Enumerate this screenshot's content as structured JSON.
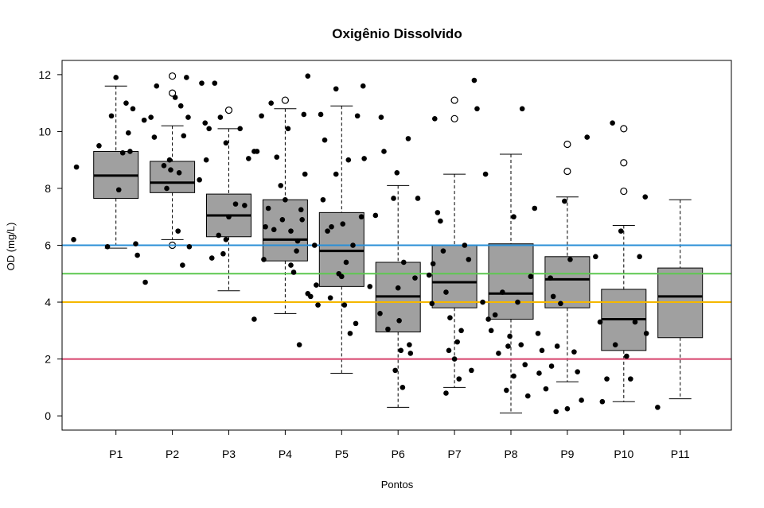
{
  "chart_data": {
    "type": "boxplot",
    "title": "Oxigênio Dissolvido",
    "xlabel": "Pontos",
    "ylabel": "OD (mg/L)",
    "ylim": [
      -0.5,
      12.5
    ],
    "yticks": [
      0,
      2,
      4,
      6,
      8,
      10,
      12
    ],
    "categories": [
      "P1",
      "P2",
      "P3",
      "P4",
      "P5",
      "P6",
      "P7",
      "P8",
      "P9",
      "P10",
      "P11"
    ],
    "boxes": [
      {
        "name": "P1",
        "whisker_low": 5.9,
        "q1": 7.65,
        "median": 8.45,
        "q3": 9.3,
        "whisker_high": 11.6,
        "outliers": []
      },
      {
        "name": "P2",
        "whisker_low": 6.2,
        "q1": 7.85,
        "median": 8.2,
        "q3": 8.95,
        "whisker_high": 10.2,
        "outliers": [
          11.95,
          11.35,
          6.0
        ]
      },
      {
        "name": "P3",
        "whisker_low": 4.4,
        "q1": 6.3,
        "median": 7.05,
        "q3": 7.8,
        "whisker_high": 10.1,
        "outliers": [
          10.75
        ]
      },
      {
        "name": "P4",
        "whisker_low": 3.6,
        "q1": 5.45,
        "median": 6.2,
        "q3": 7.6,
        "whisker_high": 10.8,
        "outliers": [
          11.1
        ]
      },
      {
        "name": "P5",
        "whisker_low": 1.5,
        "q1": 4.55,
        "median": 5.8,
        "q3": 7.15,
        "whisker_high": 10.9,
        "outliers": []
      },
      {
        "name": "P6",
        "whisker_low": 0.3,
        "q1": 2.95,
        "median": 4.2,
        "q3": 5.4,
        "whisker_high": 8.1,
        "outliers": []
      },
      {
        "name": "P7",
        "whisker_low": 1.0,
        "q1": 3.8,
        "median": 4.7,
        "q3": 6.0,
        "whisker_high": 8.5,
        "outliers": [
          11.1,
          10.45
        ]
      },
      {
        "name": "P8",
        "whisker_low": 0.1,
        "q1": 3.4,
        "median": 4.3,
        "q3": 6.05,
        "whisker_high": 9.2,
        "outliers": []
      },
      {
        "name": "P9",
        "whisker_low": 1.2,
        "q1": 3.8,
        "median": 4.8,
        "q3": 5.6,
        "whisker_high": 7.7,
        "outliers": [
          9.55,
          8.6
        ]
      },
      {
        "name": "P10",
        "whisker_low": 0.5,
        "q1": 2.3,
        "median": 3.4,
        "q3": 4.45,
        "whisker_high": 6.7,
        "outliers": [
          10.1,
          8.9,
          7.9
        ]
      },
      {
        "name": "P11",
        "whisker_low": 0.6,
        "q1": 2.75,
        "median": 4.2,
        "q3": 5.2,
        "whisker_high": 7.6,
        "outliers": []
      }
    ],
    "reference_lines": [
      {
        "y": 6,
        "color": "#2a8fd7"
      },
      {
        "y": 5,
        "color": "#5dc850"
      },
      {
        "y": 4,
        "color": "#f5b800"
      },
      {
        "y": 2,
        "color": "#d6416b"
      }
    ],
    "points": [
      [
        0.3,
        8.75
      ],
      [
        0.25,
        6.2
      ],
      [
        0.7,
        9.5
      ],
      [
        1,
        11.9
      ],
      [
        1.22,
        9.95
      ],
      [
        0.92,
        10.55
      ],
      [
        1.12,
        9.25
      ],
      [
        1.25,
        9.3
      ],
      [
        1.3,
        10.8
      ],
      [
        1.05,
        7.95
      ],
      [
        0.85,
        5.95
      ],
      [
        1.18,
        11.0
      ],
      [
        1.35,
        6.05
      ],
      [
        1.38,
        5.65
      ],
      [
        1.52,
        4.7
      ],
      [
        1.5,
        10.4
      ],
      [
        1.62,
        10.5
      ],
      [
        1.72,
        11.6
      ],
      [
        1.85,
        8.8
      ],
      [
        1.97,
        8.65
      ],
      [
        1.9,
        8.0
      ],
      [
        2.05,
        11.2
      ],
      [
        2.12,
        8.55
      ],
      [
        2.2,
        9.85
      ],
      [
        2.28,
        10.5
      ],
      [
        2.1,
        6.5
      ],
      [
        2.3,
        5.95
      ],
      [
        2.18,
        5.3
      ],
      [
        1.68,
        9.8
      ],
      [
        1.95,
        9.0
      ],
      [
        2.15,
        10.9
      ],
      [
        2.25,
        11.9
      ],
      [
        2.48,
        8.3
      ],
      [
        2.52,
        11.7
      ],
      [
        2.58,
        10.3
      ],
      [
        2.65,
        10.1
      ],
      [
        2.75,
        11.7
      ],
      [
        2.85,
        10.5
      ],
      [
        2.95,
        9.6
      ],
      [
        3.0,
        7.0
      ],
      [
        2.82,
        6.35
      ],
      [
        2.9,
        5.7
      ],
      [
        3.12,
        7.45
      ],
      [
        3.2,
        10.1
      ],
      [
        3.28,
        7.4
      ],
      [
        3.35,
        9.05
      ],
      [
        3.45,
        9.3
      ],
      [
        2.7,
        5.55
      ],
      [
        2.95,
        6.2
      ],
      [
        2.6,
        9.0
      ],
      [
        3.5,
        9.3
      ],
      [
        3.58,
        10.55
      ],
      [
        3.62,
        5.5
      ],
      [
        3.65,
        6.65
      ],
      [
        3.7,
        7.3
      ],
      [
        3.8,
        6.55
      ],
      [
        3.92,
        8.1
      ],
      [
        3.95,
        6.9
      ],
      [
        4.0,
        7.6
      ],
      [
        4.05,
        10.1
      ],
      [
        4.1,
        6.5
      ],
      [
        4.15,
        5.05
      ],
      [
        4.2,
        5.8
      ],
      [
        4.28,
        7.25
      ],
      [
        4.3,
        6.9
      ],
      [
        4.33,
        10.6
      ],
      [
        4.4,
        11.95
      ],
      [
        4.35,
        8.5
      ],
      [
        3.45,
        3.4
      ],
      [
        4.1,
        5.3
      ],
      [
        4.22,
        6.15
      ],
      [
        3.85,
        9.1
      ],
      [
        4.25,
        2.5
      ],
      [
        4.4,
        4.3
      ],
      [
        3.75,
        11.0
      ],
      [
        4.45,
        4.2
      ],
      [
        4.52,
        6.0
      ],
      [
        4.58,
        3.9
      ],
      [
        4.63,
        10.6
      ],
      [
        4.7,
        9.7
      ],
      [
        4.75,
        6.5
      ],
      [
        4.82,
        6.65
      ],
      [
        4.9,
        11.5
      ],
      [
        4.95,
        5.0
      ],
      [
        5.02,
        6.75
      ],
      [
        5.08,
        5.4
      ],
      [
        5.12,
        9.0
      ],
      [
        5.2,
        6.0
      ],
      [
        5.28,
        10.55
      ],
      [
        5.35,
        7.0
      ],
      [
        5.25,
        3.25
      ],
      [
        5.15,
        2.9
      ],
      [
        5.05,
        3.9
      ],
      [
        4.55,
        4.6
      ],
      [
        4.67,
        7.6
      ],
      [
        4.9,
        8.5
      ],
      [
        5.38,
        11.6
      ],
      [
        5.4,
        9.05
      ],
      [
        4.8,
        4.15
      ],
      [
        5.0,
        4.9
      ],
      [
        5.5,
        4.55
      ],
      [
        5.6,
        7.05
      ],
      [
        5.68,
        3.6
      ],
      [
        5.75,
        9.3
      ],
      [
        5.82,
        3.05
      ],
      [
        5.92,
        7.65
      ],
      [
        5.98,
        8.55
      ],
      [
        6.02,
        3.35
      ],
      [
        6.1,
        5.4
      ],
      [
        6.18,
        9.75
      ],
      [
        6.22,
        2.2
      ],
      [
        6.3,
        4.85
      ],
      [
        6.35,
        7.65
      ],
      [
        6.08,
        1.0
      ],
      [
        6.2,
        2.5
      ],
      [
        5.95,
        1.6
      ],
      [
        6.05,
        2.3
      ],
      [
        5.7,
        10.5
      ],
      [
        6.0,
        4.5
      ],
      [
        6.55,
        4.95
      ],
      [
        6.62,
        5.35
      ],
      [
        6.7,
        7.15
      ],
      [
        6.75,
        6.85
      ],
      [
        6.8,
        5.8
      ],
      [
        6.85,
        4.35
      ],
      [
        6.92,
        3.45
      ],
      [
        7.0,
        2.0
      ],
      [
        7.05,
        2.6
      ],
      [
        7.12,
        3.0
      ],
      [
        7.18,
        6.0
      ],
      [
        7.25,
        5.5
      ],
      [
        7.3,
        1.6
      ],
      [
        7.35,
        11.8
      ],
      [
        7.4,
        10.8
      ],
      [
        6.85,
        0.8
      ],
      [
        6.9,
        2.3
      ],
      [
        7.08,
        1.3
      ],
      [
        6.65,
        10.45
      ],
      [
        6.6,
        3.95
      ],
      [
        7.5,
        4.0
      ],
      [
        7.55,
        8.5
      ],
      [
        7.6,
        3.4
      ],
      [
        7.65,
        3.0
      ],
      [
        7.72,
        3.55
      ],
      [
        7.78,
        2.2
      ],
      [
        7.85,
        4.35
      ],
      [
        7.92,
        0.9
      ],
      [
        7.98,
        2.8
      ],
      [
        8.05,
        7.0
      ],
      [
        8.12,
        4.0
      ],
      [
        8.18,
        2.5
      ],
      [
        8.25,
        1.8
      ],
      [
        8.3,
        0.7
      ],
      [
        8.35,
        4.9
      ],
      [
        8.42,
        7.3
      ],
      [
        8.48,
        2.9
      ],
      [
        8.2,
        10.8
      ],
      [
        8.05,
        1.4
      ],
      [
        7.95,
        2.45
      ],
      [
        8.5,
        1.5
      ],
      [
        8.55,
        2.3
      ],
      [
        8.62,
        0.95
      ],
      [
        8.7,
        4.85
      ],
      [
        8.75,
        4.2
      ],
      [
        8.82,
        2.45
      ],
      [
        8.88,
        3.95
      ],
      [
        8.95,
        7.55
      ],
      [
        9.05,
        5.5
      ],
      [
        9.12,
        2.25
      ],
      [
        9.18,
        1.55
      ],
      [
        9.25,
        0.55
      ],
      [
        9.35,
        9.8
      ],
      [
        8.8,
        0.15
      ],
      [
        9.0,
        0.25
      ],
      [
        8.72,
        1.75
      ],
      [
        9.5,
        5.6
      ],
      [
        9.58,
        3.3
      ],
      [
        9.62,
        0.5
      ],
      [
        9.7,
        1.3
      ],
      [
        9.8,
        10.3
      ],
      [
        9.85,
        2.5
      ],
      [
        9.95,
        6.5
      ],
      [
        10.05,
        2.1
      ],
      [
        10.12,
        1.3
      ],
      [
        10.2,
        3.3
      ],
      [
        10.28,
        5.6
      ],
      [
        10.38,
        7.7
      ],
      [
        10.4,
        2.9
      ],
      [
        10.6,
        0.3
      ]
    ]
  }
}
